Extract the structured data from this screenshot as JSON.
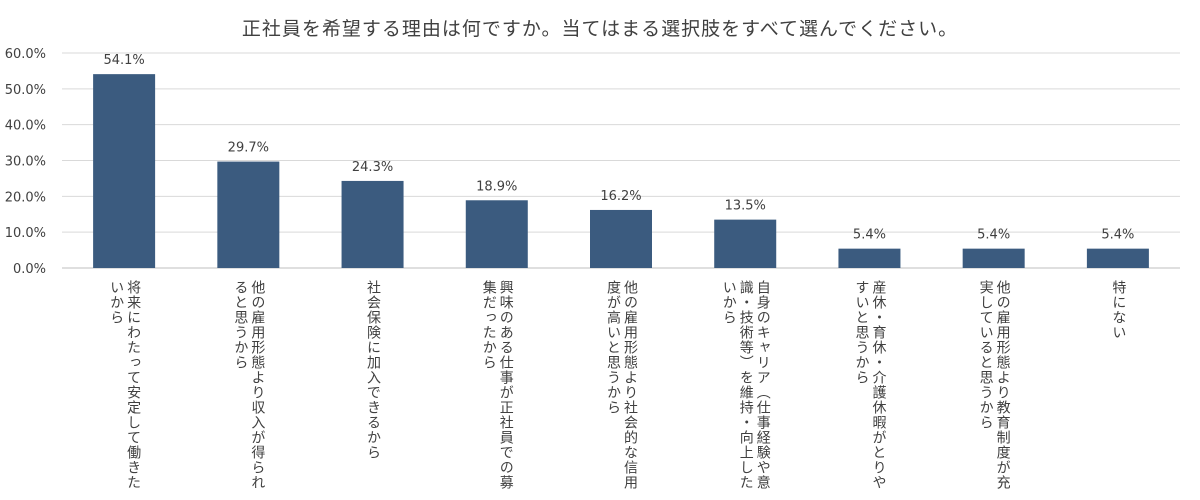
{
  "chart_data": {
    "type": "bar",
    "title": "正社員を希望する理由は何ですか。当てはまる選択肢をすべて選んでください。",
    "categories": [
      "将来にわたって安定して働きたいから",
      "他の雇用形態より収入が得られると思うから",
      "社会保険に加入できるから",
      "興味のある仕事が正社員での募集だったから",
      "他の雇用形態より社会的な信用度が高いと思うから",
      "自身のキャリア（仕事経験や意識・技術等）を維持・向上したいから",
      "産休・育休・介護休暇がとりやすいと思うから",
      "他の雇用形態より教育制度が充実していると思うから",
      "特にない"
    ],
    "values": [
      54.1,
      29.7,
      24.3,
      18.9,
      16.2,
      13.5,
      5.4,
      5.4,
      5.4
    ],
    "value_labels": [
      "54.1%",
      "29.7%",
      "24.3%",
      "18.9%",
      "16.2%",
      "13.5%",
      "5.4%",
      "5.4%",
      "5.4%"
    ],
    "y_ticks": [
      "0.0%",
      "10.0%",
      "20.0%",
      "30.0%",
      "40.0%",
      "50.0%",
      "60.0%"
    ],
    "ylim": [
      0,
      60
    ],
    "grid": true,
    "bar_color": "#3b5b7f",
    "grid_color": "#d9d9d9"
  }
}
